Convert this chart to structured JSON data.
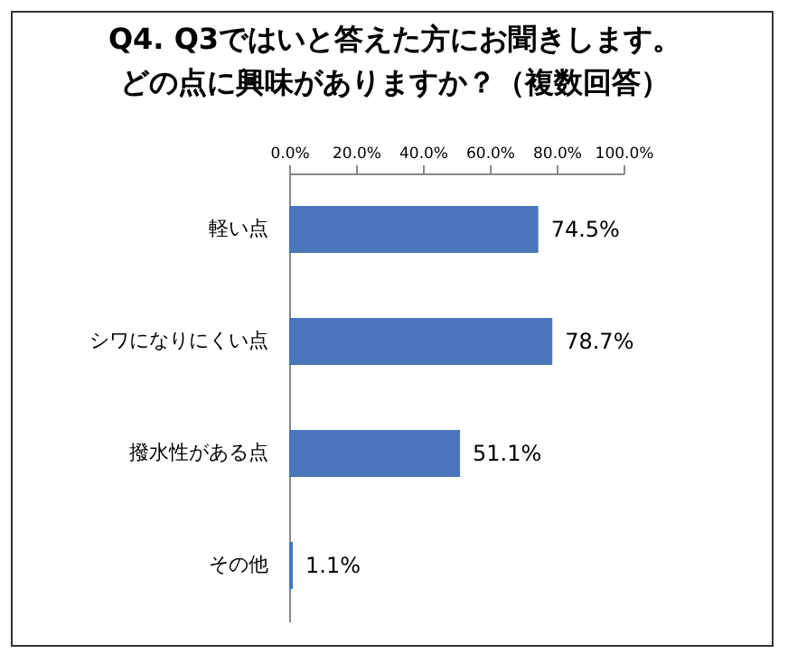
{
  "chart_data": {
    "type": "bar",
    "orientation": "horizontal",
    "title": "Q4. Q3ではいと答えた方にお聞きします。どの点に興味がありますか？（複数回答）",
    "categories": [
      "軽い点",
      "シワになりにくい点",
      "撥水性がある点",
      "その他"
    ],
    "values": [
      74.5,
      78.7,
      51.1,
      1.1
    ],
    "value_labels": [
      "74.5%",
      "78.7%",
      "51.1%",
      "1.1%"
    ],
    "color": "#4a76bb",
    "xlim": [
      0,
      100
    ],
    "xticks": [
      {
        "value": 0,
        "label": "0.0%"
      },
      {
        "value": 20,
        "label": "20.0%"
      },
      {
        "value": 40,
        "label": "40.0%"
      },
      {
        "value": 60,
        "label": "60.0%"
      },
      {
        "value": 80,
        "label": "80.0%"
      },
      {
        "value": 100,
        "label": "100.0%"
      }
    ],
    "grid": false
  }
}
